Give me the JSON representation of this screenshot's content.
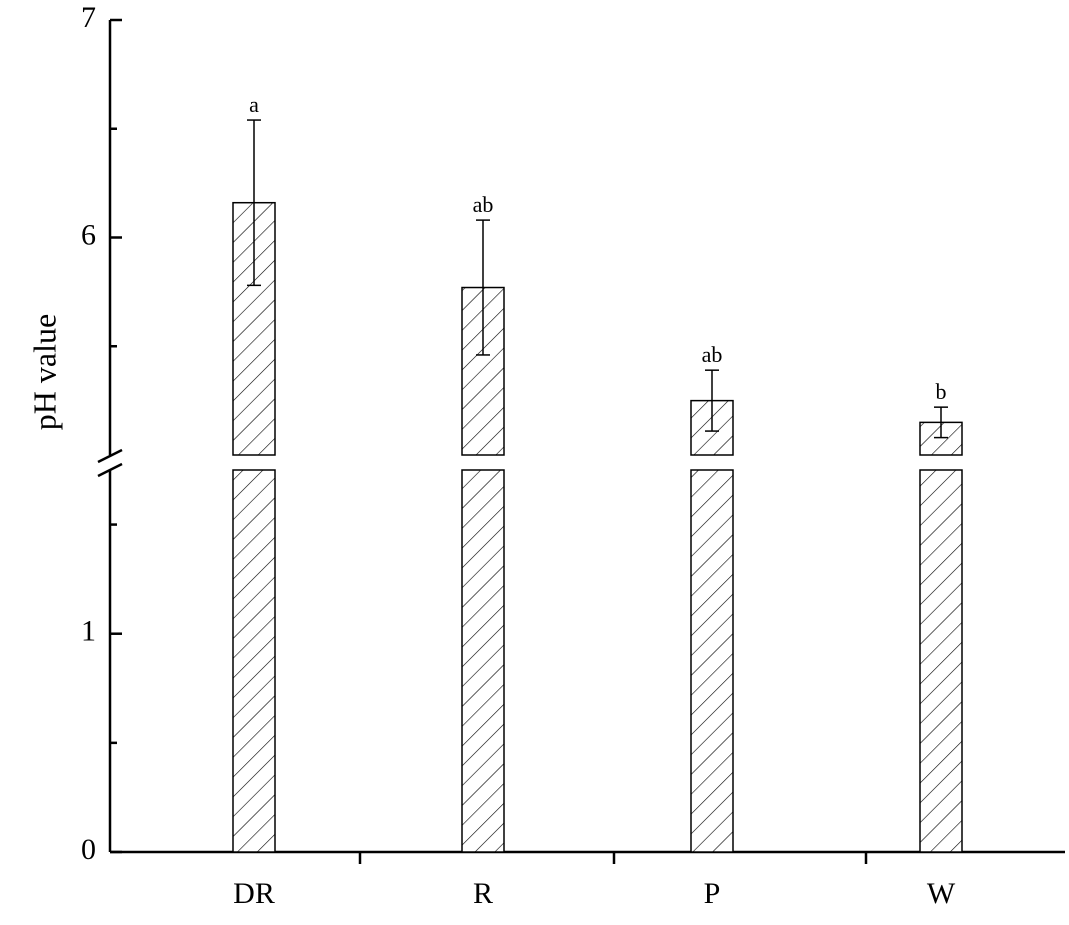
{
  "chart_data": {
    "type": "bar",
    "y_label": "pH value",
    "categories": [
      "DR",
      "R",
      "P",
      "W"
    ],
    "values": [
      6.16,
      5.77,
      5.25,
      5.15
    ],
    "errors": [
      0.38,
      0.31,
      0.14,
      0.07
    ],
    "annotations": [
      "a",
      "ab",
      "ab",
      "b"
    ],
    "ylim_lower": [
      0,
      1.75
    ],
    "ylim_upper": [
      5,
      7
    ],
    "yticks": [
      0,
      1,
      6,
      7
    ],
    "yminorticks": [
      0.5,
      1.5,
      5.5,
      6.5
    ],
    "hatch": true,
    "color": "#000000"
  }
}
